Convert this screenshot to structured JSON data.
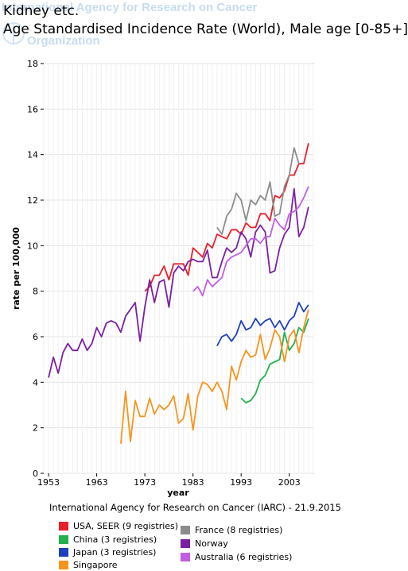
{
  "watermark": {
    "line1": "International Agency for Research on Cancer",
    "line2": "Organization"
  },
  "footer": "International Agency for Research on Cancer (IARC) - 21.9.2015",
  "chart_data": {
    "type": "line",
    "title": "Kidney etc.",
    "subtitle": "Age Standardised Incidence Rate (World), Male age [0-85+]",
    "xlabel": "year",
    "ylabel": "rate per 100,000",
    "xlim": [
      1952,
      2008
    ],
    "ylim": [
      0,
      18
    ],
    "xticks": [
      1953,
      1963,
      1973,
      1983,
      1993,
      2003
    ],
    "yticks": [
      0,
      2,
      4,
      6,
      8,
      10,
      12,
      14,
      16,
      18
    ],
    "grid": true,
    "legend": "bottom",
    "series": [
      {
        "name": "USA, SEER (9 registries)",
        "color": "#e8202a",
        "x": [
          1973,
          1974,
          1975,
          1976,
          1977,
          1978,
          1979,
          1980,
          1981,
          1982,
          1983,
          1984,
          1985,
          1986,
          1987,
          1988,
          1989,
          1990,
          1991,
          1992,
          1993,
          1994,
          1995,
          1996,
          1997,
          1998,
          1999,
          2000,
          2001,
          2002,
          2003,
          2004,
          2005,
          2006,
          2007
        ],
        "values": [
          8.0,
          8.2,
          8.7,
          8.7,
          9.1,
          8.5,
          9.2,
          9.2,
          9.2,
          8.7,
          9.9,
          9.7,
          9.5,
          10.1,
          9.9,
          10.5,
          10.4,
          10.3,
          10.7,
          10.7,
          10.5,
          11.0,
          10.8,
          10.8,
          11.4,
          11.4,
          11.1,
          12.2,
          12.1,
          12.4,
          13.1,
          13.1,
          13.6,
          13.6,
          14.5
        ]
      },
      {
        "name": "China (3 registries)",
        "color": "#22b14c",
        "x": [
          1993,
          1994,
          1995,
          1996,
          1997,
          1998,
          1999,
          2000,
          2001,
          2002,
          2003,
          2004,
          2005,
          2006,
          2007
        ],
        "values": [
          3.3,
          3.1,
          3.2,
          3.5,
          4.1,
          4.3,
          4.8,
          4.9,
          5.0,
          6.2,
          5.4,
          5.7,
          6.4,
          6.2,
          6.8
        ]
      },
      {
        "name": "Japan (3 registries)",
        "color": "#1f3fbf",
        "x": [
          1988,
          1989,
          1990,
          1991,
          1992,
          1993,
          1994,
          1995,
          1996,
          1997,
          1998,
          1999,
          2000,
          2001,
          2002,
          2003,
          2004,
          2005,
          2006,
          2007
        ],
        "values": [
          5.6,
          6.0,
          6.1,
          5.8,
          6.1,
          6.7,
          6.3,
          6.4,
          6.8,
          6.5,
          6.7,
          6.8,
          6.4,
          6.7,
          6.3,
          6.7,
          6.9,
          7.5,
          7.1,
          7.4
        ]
      },
      {
        "name": "Singapore",
        "color": "#f7941d",
        "x": [
          1968,
          1969,
          1970,
          1971,
          1972,
          1973,
          1974,
          1975,
          1976,
          1977,
          1978,
          1979,
          1980,
          1981,
          1982,
          1983,
          1984,
          1985,
          1986,
          1987,
          1988,
          1989,
          1990,
          1991,
          1992,
          1993,
          1994,
          1995,
          1996,
          1997,
          1998,
          1999,
          2000,
          2001,
          2002,
          2003,
          2004,
          2005,
          2006,
          2007
        ],
        "values": [
          1.3,
          3.6,
          1.4,
          3.2,
          2.5,
          2.5,
          3.3,
          2.6,
          3.0,
          2.8,
          3.0,
          3.4,
          2.2,
          2.4,
          3.5,
          1.9,
          3.4,
          4.0,
          3.9,
          3.6,
          4.0,
          3.6,
          2.8,
          4.7,
          4.1,
          4.9,
          5.4,
          5.1,
          5.2,
          6.1,
          5.0,
          5.5,
          6.3,
          6.0,
          4.9,
          6.0,
          6.3,
          5.3,
          6.4,
          7.2
        ]
      },
      {
        "name": "France (8 registries)",
        "color": "#8c8c8c",
        "x": [
          1988,
          1989,
          1990,
          1991,
          1992,
          1993,
          1994,
          1995,
          1996,
          1997,
          1998,
          1999,
          2000,
          2001,
          2002,
          2003,
          2004,
          2005
        ],
        "values": [
          10.8,
          10.5,
          11.3,
          11.6,
          12.3,
          12.0,
          11.1,
          12.0,
          11.8,
          12.2,
          12.0,
          12.8,
          11.3,
          11.4,
          12.6,
          13.1,
          14.3,
          13.6
        ]
      },
      {
        "name": "Norway",
        "color": "#7b1fa2",
        "x": [
          1953,
          1954,
          1955,
          1956,
          1957,
          1958,
          1959,
          1960,
          1961,
          1962,
          1963,
          1964,
          1965,
          1966,
          1967,
          1968,
          1969,
          1970,
          1971,
          1972,
          1973,
          1974,
          1975,
          1976,
          1977,
          1978,
          1979,
          1980,
          1981,
          1982,
          1983,
          1984,
          1985,
          1986,
          1987,
          1988,
          1989,
          1990,
          1991,
          1992,
          1993,
          1994,
          1995,
          1996,
          1997,
          1998,
          1999,
          2000,
          2001,
          2002,
          2003,
          2004,
          2005,
          2006,
          2007
        ],
        "values": [
          4.2,
          5.1,
          4.4,
          5.3,
          5.7,
          5.4,
          5.4,
          5.9,
          5.4,
          5.7,
          6.4,
          6.0,
          6.6,
          6.7,
          6.6,
          6.2,
          6.9,
          7.2,
          7.5,
          5.8,
          7.3,
          8.5,
          7.5,
          8.4,
          8.5,
          7.3,
          8.8,
          9.1,
          8.9,
          9.3,
          9.4,
          9.3,
          9.3,
          9.8,
          8.6,
          8.6,
          9.3,
          9.9,
          9.7,
          9.9,
          10.6,
          10.3,
          9.5,
          10.6,
          10.9,
          10.6,
          8.8,
          8.9,
          9.9,
          10.5,
          10.8,
          12.5,
          10.4,
          10.8,
          11.7
        ]
      },
      {
        "name": "Australia (6 registries)",
        "color": "#c15ee3",
        "x": [
          1983,
          1984,
          1985,
          1986,
          1987,
          1988,
          1989,
          1990,
          1991,
          1992,
          1993,
          1994,
          1995,
          1996,
          1997,
          1998,
          1999,
          2000,
          2001,
          2002,
          2003,
          2004,
          2005,
          2006,
          2007
        ],
        "values": [
          8.0,
          8.2,
          7.8,
          8.5,
          8.2,
          8.4,
          8.6,
          9.3,
          9.5,
          9.6,
          9.7,
          10.0,
          10.3,
          10.3,
          10.1,
          10.4,
          10.4,
          11.2,
          10.9,
          10.7,
          11.4,
          11.5,
          11.7,
          12.1,
          12.6
        ]
      }
    ]
  }
}
